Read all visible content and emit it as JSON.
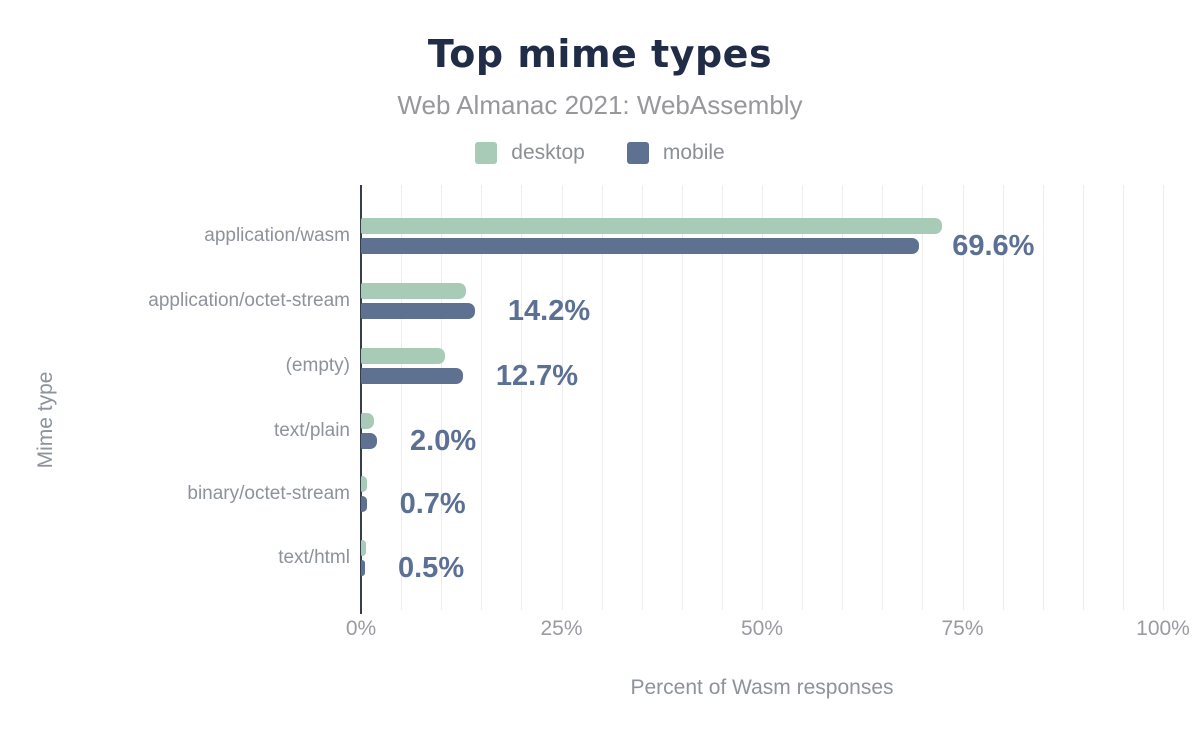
{
  "title": "Top mime types",
  "subtitle": "Web Almanac 2021: WebAssembly",
  "legend": {
    "items": [
      {
        "label": "desktop",
        "color": "#a8cbb8"
      },
      {
        "label": "mobile",
        "color": "#5f7191"
      }
    ]
  },
  "chart_data": {
    "type": "bar",
    "orientation": "horizontal",
    "title": "Top mime types",
    "subtitle": "Web Almanac 2021: WebAssembly",
    "categories": [
      "application/wasm",
      "application/octet-stream",
      "(empty)",
      "text/plain",
      "binary/octet-stream",
      "text/html"
    ],
    "series": [
      {
        "name": "desktop",
        "color": "#a8cbb8",
        "values": [
          72.4,
          13.1,
          10.5,
          1.6,
          0.8,
          0.6
        ]
      },
      {
        "name": "mobile",
        "color": "#5f7191",
        "values": [
          69.6,
          14.2,
          12.7,
          2.0,
          0.7,
          0.5
        ]
      }
    ],
    "data_labels": {
      "series": "mobile",
      "text": [
        "69.6%",
        "14.2%",
        "12.7%",
        "2.0%",
        "0.7%",
        "0.5%"
      ]
    },
    "xlabel": "Percent of Wasm responses",
    "ylabel": "Mime type",
    "xlim": [
      0,
      100
    ],
    "x_ticks": [
      "0%",
      "25%",
      "50%",
      "75%",
      "100%"
    ],
    "x_tick_values": [
      0,
      25,
      50,
      75,
      100
    ],
    "grid": "vertical minor gridlines every 5%",
    "legend_position": "top"
  },
  "colors": {
    "background": "#ffffff",
    "title": "#212c47",
    "subtitle": "#97979c",
    "legend_label": "#8b9096",
    "axis_line": "#363d4c",
    "gridline": "#ededf1",
    "tick_label": "#9a9aa1",
    "category_label": "#8d929b",
    "value_label": "#5b7093",
    "y_axis_title": "#8d929b",
    "x_axis_title": "#8d929b"
  }
}
